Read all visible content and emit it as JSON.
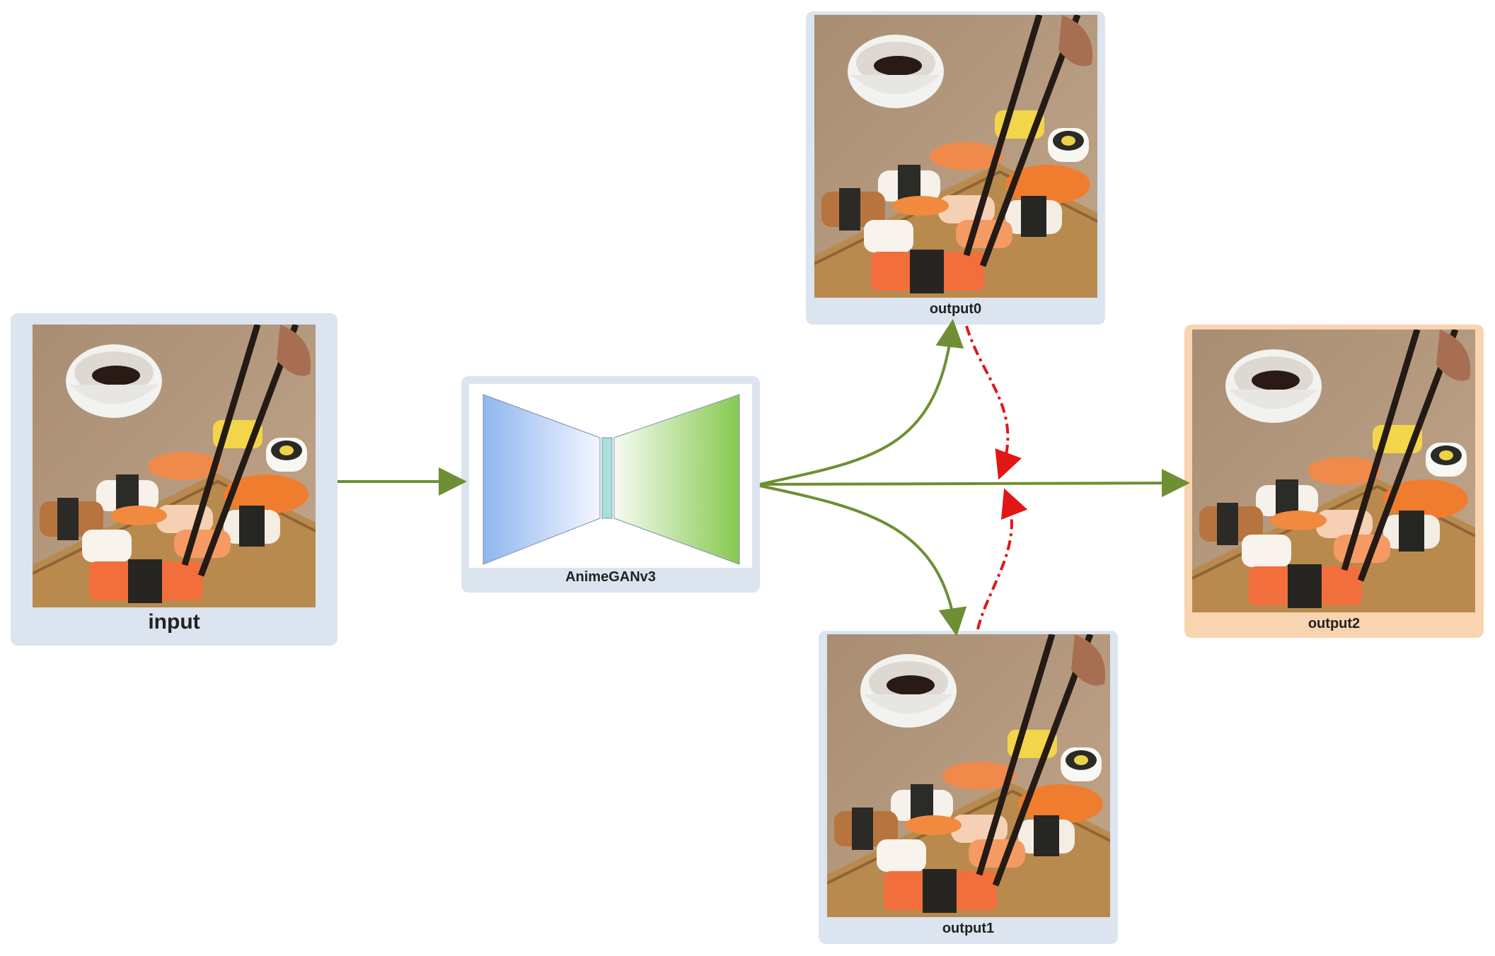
{
  "nodes": {
    "input_label": "input",
    "model_label": "AnimeGANv3",
    "output0_label": "output0",
    "output1_label": "output1",
    "output2_label": "output2"
  },
  "colors": {
    "card_bg": "#dbe4ef",
    "highlight_card_bg": "#f9d4b0",
    "flow_arrow": "#6e8f34",
    "feedback_arrow": "#e31616",
    "encoder": "#8fb6ef",
    "decoder": "#86c94f",
    "bottleneck": "#a9e0d9"
  },
  "images": {
    "input": "sushi-photo",
    "output0": "sushi-anime-style",
    "output1": "sushi-anime-style",
    "output2": "sushi-anime-style"
  }
}
